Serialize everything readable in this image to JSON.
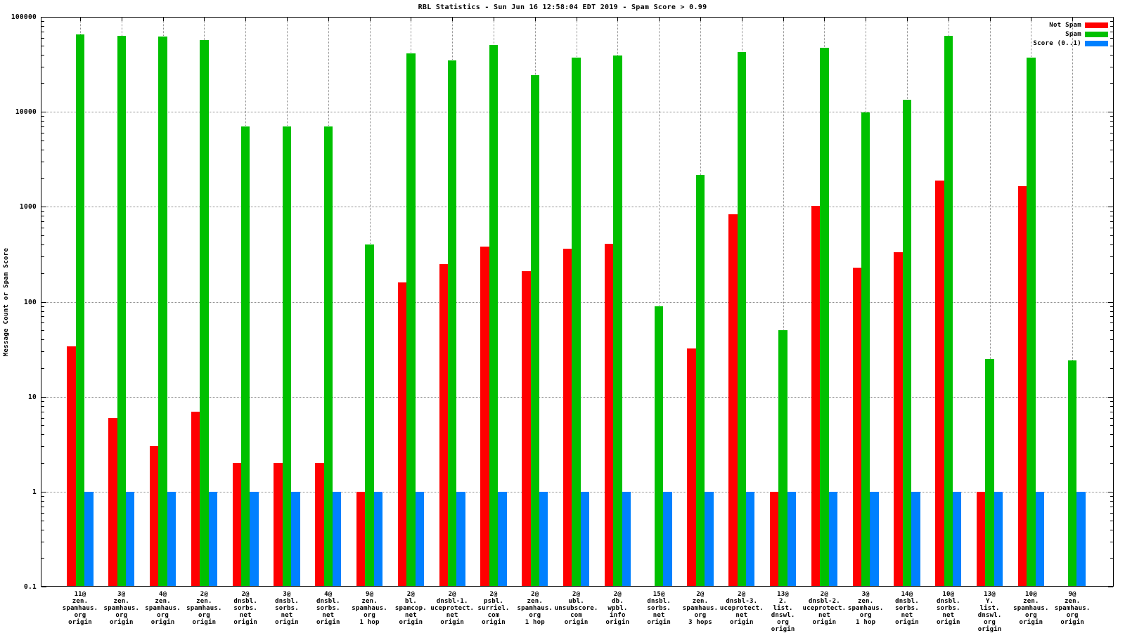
{
  "chart_data": {
    "type": "bar",
    "title": "RBL Statistics - Sun Jun 16 12:58:04 EDT 2019 - Spam Score > 0.99",
    "xlabel": "",
    "ylabel": "Message Count or Spam Score",
    "y_scale": "log",
    "ylim": [
      0.1,
      100000
    ],
    "y_ticks": [
      {
        "value": 100000,
        "label": "100000"
      },
      {
        "value": 10000,
        "label": "10000"
      },
      {
        "value": 1000,
        "label": "1000"
      },
      {
        "value": 100,
        "label": "100"
      },
      {
        "value": 10,
        "label": "10"
      },
      {
        "value": 1,
        "label": "1"
      },
      {
        "value": 0.1,
        "label": "0.1"
      }
    ],
    "grid": true,
    "legend_position": "top-right",
    "categories": [
      {
        "lines": [
          "11@",
          "zen.",
          "spamhaus.",
          "org",
          "origin"
        ]
      },
      {
        "lines": [
          "3@",
          "zen.",
          "spamhaus.",
          "org",
          "origin"
        ]
      },
      {
        "lines": [
          "4@",
          "zen.",
          "spamhaus.",
          "org",
          "origin"
        ]
      },
      {
        "lines": [
          "2@",
          "zen.",
          "spamhaus.",
          "org",
          "origin"
        ]
      },
      {
        "lines": [
          "2@",
          "dnsbl.",
          "sorbs.",
          "net",
          "origin"
        ]
      },
      {
        "lines": [
          "3@",
          "dnsbl.",
          "sorbs.",
          "net",
          "origin"
        ]
      },
      {
        "lines": [
          "4@",
          "dnsbl.",
          "sorbs.",
          "net",
          "origin"
        ]
      },
      {
        "lines": [
          "9@",
          "zen.",
          "spamhaus.",
          "org",
          "1 hop"
        ]
      },
      {
        "lines": [
          "2@",
          "bl.",
          "spamcop.",
          "net",
          "origin"
        ]
      },
      {
        "lines": [
          "2@",
          "dnsbl-1.",
          "uceprotect.",
          "net",
          "origin"
        ]
      },
      {
        "lines": [
          "2@",
          "psbl.",
          "surriel.",
          "com",
          "origin"
        ]
      },
      {
        "lines": [
          "2@",
          "zen.",
          "spamhaus.",
          "org",
          "1 hop"
        ]
      },
      {
        "lines": [
          "2@",
          "ubl.",
          "unsubscore.",
          "com",
          "origin"
        ]
      },
      {
        "lines": [
          "2@",
          "db.",
          "wpbl.",
          "info",
          "origin"
        ]
      },
      {
        "lines": [
          "15@",
          "dnsbl.",
          "sorbs.",
          "net",
          "origin"
        ]
      },
      {
        "lines": [
          "2@",
          "zen.",
          "spamhaus.",
          "org",
          "3 hops"
        ]
      },
      {
        "lines": [
          "2@",
          "dnsbl-3.",
          "uceprotect.",
          "net",
          "origin"
        ]
      },
      {
        "lines": [
          "13@",
          "2.",
          "list.",
          "dnswl.",
          "org",
          "origin"
        ]
      },
      {
        "lines": [
          "2@",
          "dnsbl-2.",
          "uceprotect.",
          "net",
          "origin"
        ]
      },
      {
        "lines": [
          "3@",
          "zen.",
          "spamhaus.",
          "org",
          "1 hop"
        ]
      },
      {
        "lines": [
          "14@",
          "dnsbl.",
          "sorbs.",
          "net",
          "origin"
        ]
      },
      {
        "lines": [
          "10@",
          "dnsbl.",
          "sorbs.",
          "net",
          "origin"
        ]
      },
      {
        "lines": [
          "13@",
          "Y.",
          "list.",
          "dnswl.",
          "org",
          "origin"
        ]
      },
      {
        "lines": [
          "10@",
          "zen.",
          "spamhaus.",
          "org",
          "origin"
        ]
      },
      {
        "lines": [
          "9@",
          "zen.",
          "spamhaus.",
          "org",
          "origin"
        ]
      }
    ],
    "series": [
      {
        "name": "Not Spam",
        "color": "#ff0000",
        "values": [
          34,
          6,
          3,
          7,
          2,
          2,
          2,
          1,
          160,
          250,
          380,
          210,
          360,
          410,
          null,
          32,
          840,
          1,
          1030,
          230,
          330,
          1900,
          1,
          1650,
          null
        ]
      },
      {
        "name": "Spam",
        "color": "#00c000",
        "values": [
          65000,
          63000,
          62000,
          57000,
          7000,
          7000,
          7000,
          400,
          41000,
          35000,
          51000,
          24500,
          37500,
          39000,
          90,
          2150,
          43000,
          50,
          47000,
          9800,
          13500,
          63000,
          25,
          37000,
          24
        ]
      },
      {
        "name": "Score (0..1)",
        "color": "#0080ff",
        "values": [
          1,
          1,
          1,
          1,
          1,
          1,
          1,
          1,
          1,
          1,
          1,
          1,
          1,
          1,
          1,
          1,
          1,
          1,
          1,
          1,
          1,
          1,
          1,
          1,
          1
        ]
      }
    ]
  }
}
